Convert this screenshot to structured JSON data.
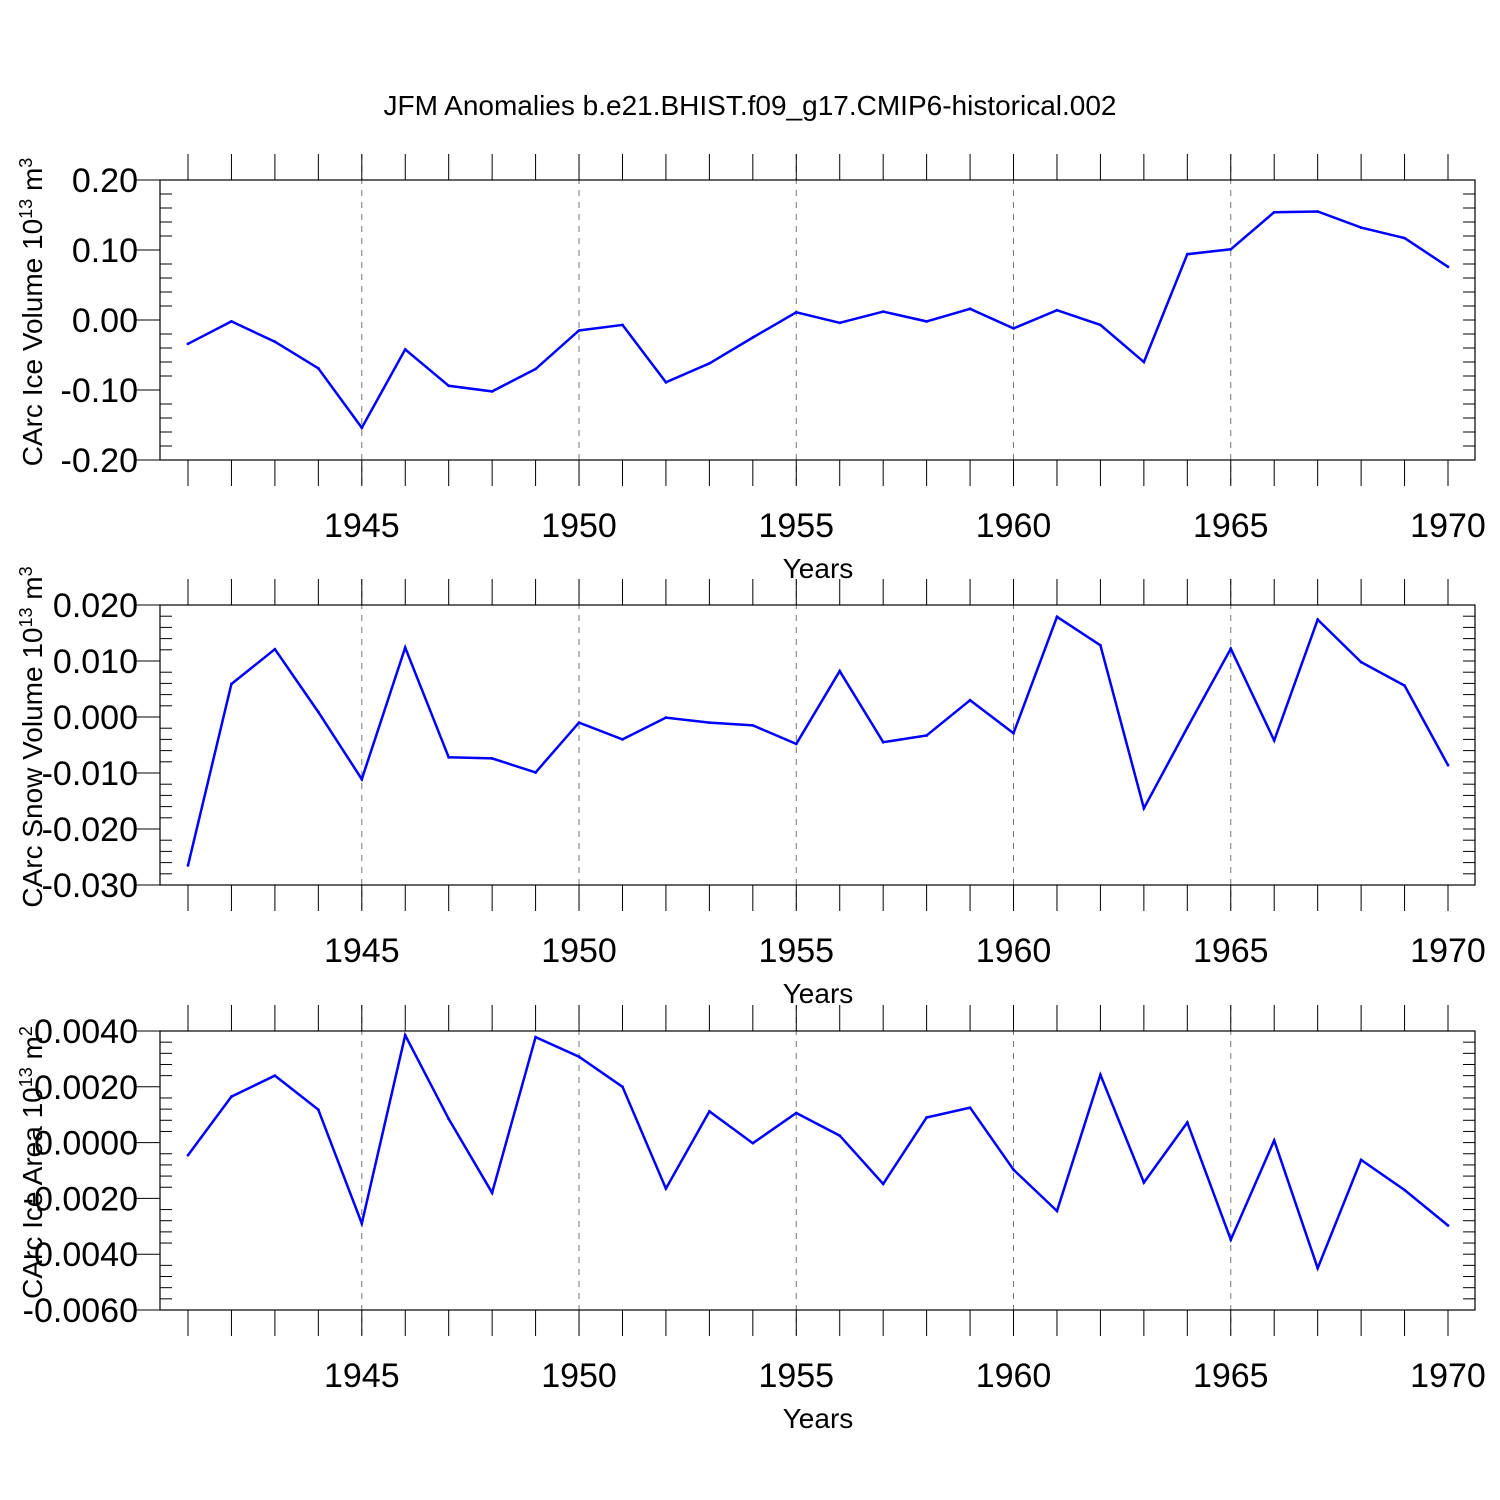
{
  "title": "JFM Anomalies b.e21.BHIST.f09_g17.CMIP6-historical.002",
  "colors": {
    "series": "#0000ff",
    "axis": "#000000",
    "grid": "#777777"
  },
  "chart_data": [
    {
      "type": "line",
      "ylabel_main": "CArc Ice Volume 10",
      "ylabel_exp": "13",
      "ylabel_unit": " m",
      "ylabel_unit_exp": "3",
      "xlabel": "Years",
      "xlim": [
        1941,
        1970
      ],
      "ylim": [
        -0.2,
        0.2
      ],
      "yticks": [
        -0.2,
        -0.1,
        0.0,
        0.1,
        0.2
      ],
      "ytick_labels": [
        "-0.20",
        "-0.10",
        "0.00",
        "0.10",
        "0.20"
      ],
      "xticks": [
        1945,
        1950,
        1955,
        1960,
        1965,
        1970
      ],
      "xtick_labels": [
        "1945",
        "1950",
        "1955",
        "1960",
        "1965",
        "1970"
      ],
      "grid_x": [
        1945,
        1950,
        1955,
        1960,
        1965
      ],
      "x": [
        1941,
        1942,
        1943,
        1944,
        1945,
        1946,
        1947,
        1948,
        1949,
        1950,
        1951,
        1952,
        1953,
        1954,
        1955,
        1956,
        1957,
        1958,
        1959,
        1960,
        1961,
        1962,
        1963,
        1964,
        1965,
        1966,
        1967,
        1968,
        1969,
        1970
      ],
      "values": [
        -0.034,
        -0.002,
        -0.031,
        -0.069,
        -0.154,
        -0.042,
        -0.094,
        -0.102,
        -0.07,
        -0.015,
        -0.007,
        -0.089,
        -0.062,
        -0.025,
        0.011,
        -0.004,
        0.012,
        -0.002,
        0.016,
        -0.012,
        0.014,
        -0.007,
        -0.06,
        0.094,
        0.101,
        0.154,
        0.155,
        0.132,
        0.117,
        0.076
      ]
    },
    {
      "type": "line",
      "ylabel_main": "CArc Snow Volume 10",
      "ylabel_exp": "13",
      "ylabel_unit": " m",
      "ylabel_unit_exp": "3",
      "xlabel": "Years",
      "xlim": [
        1941,
        1970
      ],
      "ylim": [
        -0.03,
        0.02
      ],
      "yticks": [
        -0.03,
        -0.02,
        -0.01,
        0.0,
        0.01,
        0.02
      ],
      "ytick_labels": [
        "-0.030",
        "-0.020",
        "-0.010",
        "0.000",
        "0.010",
        "0.020"
      ],
      "xticks": [
        1945,
        1950,
        1955,
        1960,
        1965,
        1970
      ],
      "xtick_labels": [
        "1945",
        "1950",
        "1955",
        "1960",
        "1965",
        "1970"
      ],
      "grid_x": [
        1945,
        1950,
        1955,
        1960,
        1965
      ],
      "x": [
        1941,
        1942,
        1943,
        1944,
        1945,
        1946,
        1947,
        1948,
        1949,
        1950,
        1951,
        1952,
        1953,
        1954,
        1955,
        1956,
        1957,
        1958,
        1959,
        1960,
        1961,
        1962,
        1963,
        1964,
        1965,
        1966,
        1967,
        1968,
        1969,
        1970
      ],
      "values": [
        -0.0265,
        0.0059,
        0.0121,
        0.0009,
        -0.0111,
        0.0124,
        -0.0072,
        -0.0074,
        -0.0099,
        -0.001,
        -0.004,
        -0.0001,
        -0.001,
        -0.0015,
        -0.0048,
        0.0082,
        -0.0045,
        -0.0033,
        0.003,
        -0.0029,
        0.0179,
        0.0128,
        -0.0163,
        -0.0019,
        0.0122,
        -0.0042,
        0.0174,
        0.0098,
        0.0056,
        -0.0086
      ]
    },
    {
      "type": "line",
      "ylabel_main": "CArc Ice Area 10",
      "ylabel_exp": "13",
      "ylabel_unit": " m",
      "ylabel_unit_exp": "2",
      "xlabel": "Years",
      "xlim": [
        1941,
        1970
      ],
      "ylim": [
        -0.006,
        0.004
      ],
      "yticks": [
        -0.006,
        -0.004,
        -0.002,
        0.0,
        0.002,
        0.004
      ],
      "ytick_labels": [
        "-0.0060",
        "-0.0040",
        "-0.0020",
        "0.0000",
        "0.0020",
        "0.0040"
      ],
      "xticks": [
        1945,
        1950,
        1955,
        1960,
        1965,
        1970
      ],
      "xtick_labels": [
        "1945",
        "1950",
        "1955",
        "1960",
        "1965",
        "1970"
      ],
      "grid_x": [
        1945,
        1950,
        1955,
        1960,
        1965
      ],
      "x": [
        1941,
        1942,
        1943,
        1944,
        1945,
        1946,
        1947,
        1948,
        1949,
        1950,
        1951,
        1952,
        1953,
        1954,
        1955,
        1956,
        1957,
        1958,
        1959,
        1960,
        1961,
        1962,
        1963,
        1964,
        1965,
        1966,
        1967,
        1968,
        1969,
        1970
      ],
      "values": [
        -0.00045,
        0.00165,
        0.0024,
        0.00118,
        -0.0029,
        0.00385,
        0.00085,
        -0.0018,
        0.00378,
        0.00308,
        0.002,
        -0.00165,
        0.00112,
        -2e-05,
        0.00106,
        0.00025,
        -0.00148,
        0.0009,
        0.00125,
        -0.00097,
        -0.00245,
        0.00243,
        -0.00143,
        0.00072,
        -0.00348,
        8e-05,
        -0.0045,
        -0.00062,
        -0.0017,
        -0.00297
      ]
    }
  ]
}
